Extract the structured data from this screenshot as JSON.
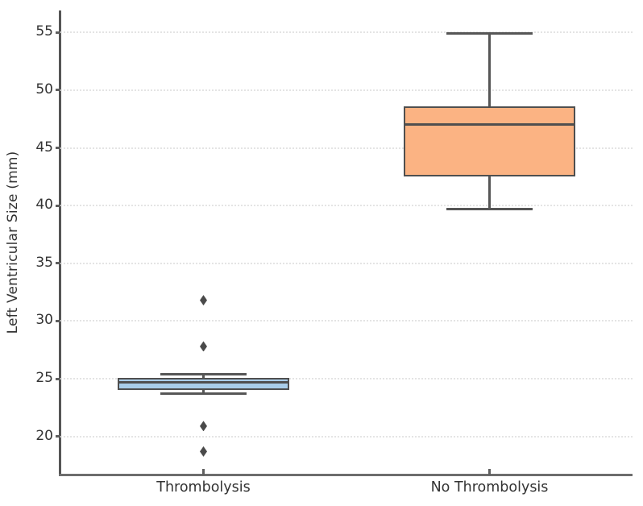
{
  "chart_data": {
    "type": "boxplot",
    "title": "",
    "xlabel": "",
    "ylabel": "Left Ventricular Size (mm)",
    "categories": [
      "Thrombolysis",
      "No Thrombolysis"
    ],
    "yticks": [
      20,
      25,
      30,
      35,
      40,
      45,
      50,
      55
    ],
    "ylim": [
      16.7,
      56.9
    ],
    "grid": true,
    "legend_position": "none",
    "series": [
      {
        "name": "Thrombolysis",
        "whisker_low": 23.7,
        "q1": 24.0,
        "median": 24.7,
        "q3": 25.1,
        "whisker_high": 25.4,
        "outliers": [
          31.8,
          27.8,
          20.9,
          18.7
        ],
        "box_color": "#a9cde9"
      },
      {
        "name": "No Thrombolysis",
        "whisker_low": 39.7,
        "q1": 42.5,
        "median": 47.0,
        "q3": 48.6,
        "whisker_high": 54.9,
        "outliers": [],
        "box_color": "#fbb383"
      }
    ],
    "style": {
      "edge_color": "#4f4f4f",
      "whisker_color": "#565656",
      "grid_color": "#e4e4e4",
      "spine_color": "#5f5f5f",
      "text_color": "#333333",
      "background": "#ffffff",
      "outlier_marker": "thin-diamond"
    }
  }
}
